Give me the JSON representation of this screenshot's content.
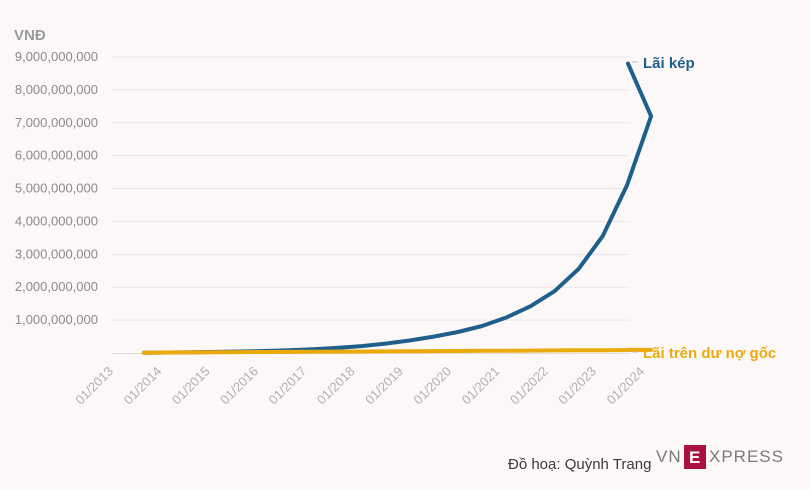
{
  "chart_data": {
    "type": "line",
    "ylabel": "VNĐ",
    "ylim": [
      0,
      9000000000
    ],
    "yticks": [
      "1,000,000,000",
      "2,000,000,000",
      "3,000,000,000",
      "4,000,000,000",
      "5,000,000,000",
      "6,000,000,000",
      "7,000,000,000",
      "8,000,000,000",
      "9,000,000,000"
    ],
    "ytick_values": [
      1000000000,
      2000000000,
      3000000000,
      4000000000,
      5000000000,
      6000000000,
      7000000000,
      8000000000,
      9000000000
    ],
    "xticks": [
      "01/2013",
      "01/2014",
      "01/2015",
      "01/2016",
      "01/2017",
      "01/2018",
      "01/2019",
      "01/2020",
      "01/2021",
      "01/2022",
      "01/2023",
      "01/2024"
    ],
    "grid": true,
    "x": [
      "01/2013",
      "07/2013",
      "01/2014",
      "07/2014",
      "01/2015",
      "07/2015",
      "01/2016",
      "07/2016",
      "01/2017",
      "07/2017",
      "01/2018",
      "07/2018",
      "01/2019",
      "07/2019",
      "01/2020",
      "07/2020",
      "01/2021",
      "07/2021",
      "01/2022",
      "07/2022",
      "01/2023",
      "07/2023"
    ],
    "series": [
      {
        "name": "Lãi kép",
        "color": "#1f5f8b",
        "values": [
          10000000,
          15000000,
          22000000,
          32000000,
          45000000,
          62000000,
          85000000,
          115000000,
          155000000,
          210000000,
          285000000,
          380000000,
          500000000,
          640000000,
          820000000,
          1080000000,
          1420000000,
          1880000000,
          2560000000,
          3560000000,
          5100000000,
          7200000000
        ]
      },
      {
        "name": "Lãi trên dư nợ gốc",
        "color": "#eaaa0c",
        "values": [
          10000000,
          14000000,
          18000000,
          22000000,
          26000000,
          30000000,
          34000000,
          38000000,
          42000000,
          46000000,
          50000000,
          54000000,
          58000000,
          62000000,
          66000000,
          70000000,
          74000000,
          78000000,
          82000000,
          86000000,
          90000000,
          94000000
        ]
      }
    ],
    "end_points": [
      {
        "x": "01/2023 + 8",
        "value": 8800000000
      },
      {
        "x": "01/2023 + 8",
        "value": 98000000
      }
    ]
  },
  "credit": "Đồ hoạ: Quỳnh Trang",
  "logo": {
    "left": "VN",
    "mark": "E",
    "right": "XPRESS"
  }
}
